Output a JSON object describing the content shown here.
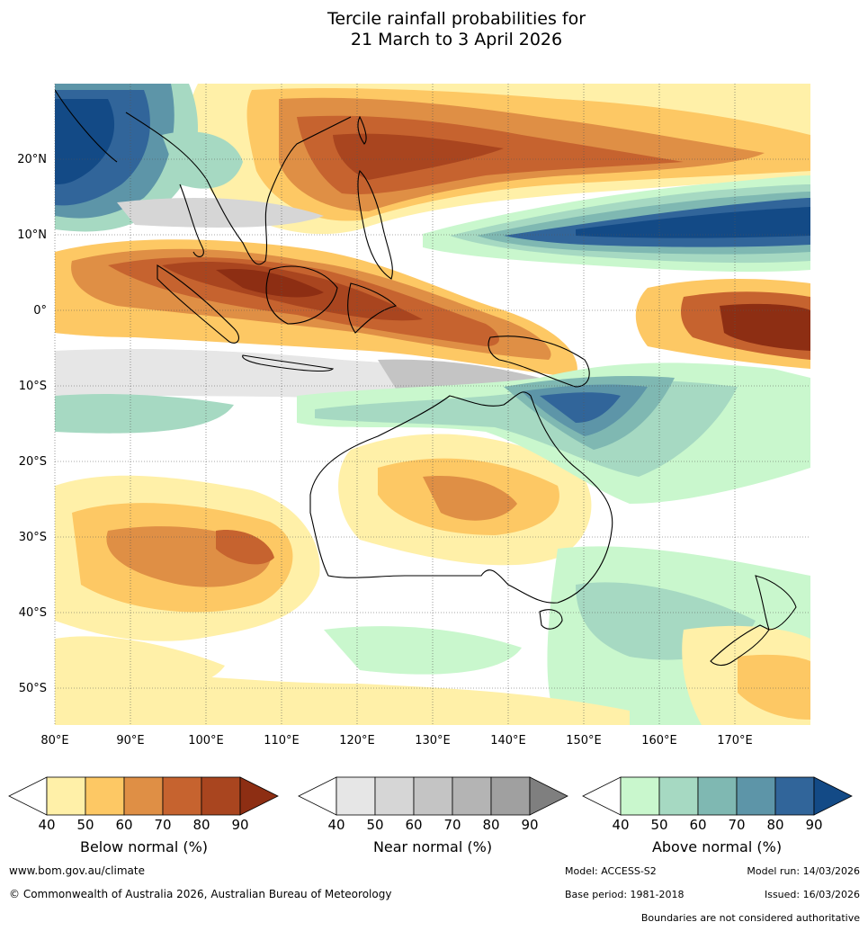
{
  "title_line1": "Tercile rainfall probabilities for",
  "title_line2": "21 March to 3 April 2026",
  "lon_labels": [
    "80°E",
    "90°E",
    "100°E",
    "110°E",
    "120°E",
    "130°E",
    "140°E",
    "150°E",
    "160°E",
    "170°E"
  ],
  "lat_labels": [
    "20°N",
    "10°N",
    "0°",
    "10°S",
    "20°S",
    "30°S",
    "40°S",
    "50°S"
  ],
  "colorbars": [
    {
      "label": "Below normal (%)",
      "ticks": [
        "40",
        "50",
        "60",
        "70",
        "80",
        "90"
      ],
      "colors": [
        "#fff0a8",
        "#fdc864",
        "#df8f45",
        "#c6632f",
        "#a9451f",
        "#8d2e13"
      ]
    },
    {
      "label": "Near normal (%)",
      "ticks": [
        "40",
        "50",
        "60",
        "70",
        "80",
        "90"
      ],
      "colors": [
        "#e6e6e6",
        "#d6d6d6",
        "#c4c4c4",
        "#b4b4b4",
        "#a0a0a0",
        "#7f7f7f"
      ]
    },
    {
      "label": "Above normal (%)",
      "ticks": [
        "40",
        "50",
        "60",
        "70",
        "80",
        "90"
      ],
      "colors": [
        "#c9f7cd",
        "#a6d9c2",
        "#7fb8b2",
        "#5d95a8",
        "#31659a",
        "#134a86"
      ]
    }
  ],
  "footer": {
    "url": "www.bom.gov.au/climate",
    "copyright": "© Commonwealth of Australia 2026, Australian Bureau of Meteorology",
    "model": "Model: ACCESS-S2",
    "model_run": "Model run: 14/03/2026",
    "base_period": "Base period: 1981-2018",
    "issued": "Issued: 16/03/2026",
    "disclaimer": "Boundaries are not considered authoritative"
  }
}
